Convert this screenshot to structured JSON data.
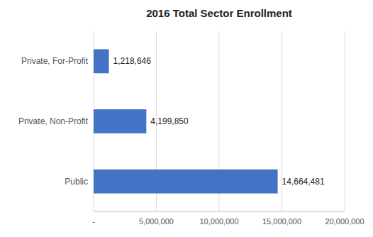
{
  "chart_data": {
    "type": "bar",
    "orientation": "horizontal",
    "title": "2016 Total Sector Enrollment",
    "categories": [
      "Public",
      "Private, Non-Profit",
      "Private, For-Profit"
    ],
    "values": [
      14664481,
      4199850,
      1218646
    ],
    "value_labels": [
      "14,664,481",
      "4,199,850",
      "1,218,646"
    ],
    "data_labels": true,
    "color": "#4472C4",
    "xlim": [
      0,
      20000000
    ],
    "xticks": [
      {
        "value": 0,
        "label": "-"
      },
      {
        "value": 5000000,
        "label": "5,000,000"
      },
      {
        "value": 10000000,
        "label": "10,000,000"
      },
      {
        "value": 15000000,
        "label": "15,000,000"
      },
      {
        "value": 20000000,
        "label": "20,000,000"
      }
    ],
    "grid": true
  }
}
